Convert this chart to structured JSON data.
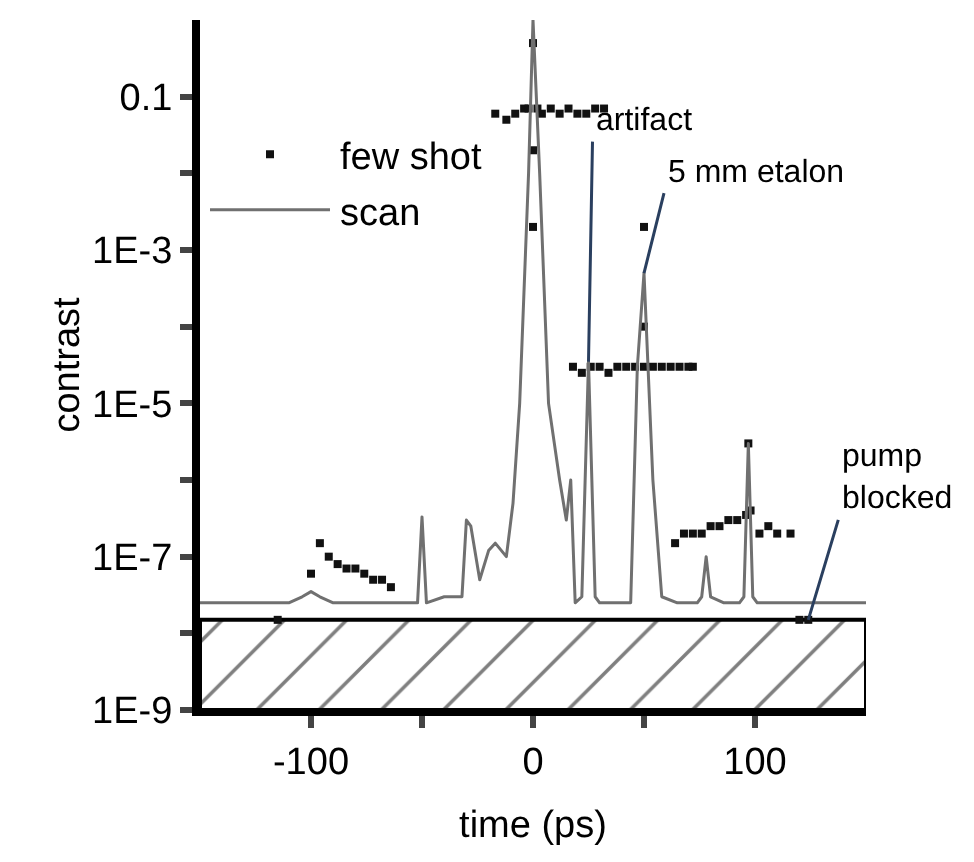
{
  "chart_data": {
    "type": "line",
    "xlabel": "time (ps)",
    "ylabel": "contrast",
    "xlim": [
      -150,
      150
    ],
    "ylim": [
      1e-09,
      1
    ],
    "log": "y",
    "legend": "top left",
    "xticks": [
      {
        "value": -100,
        "label": "-100"
      },
      {
        "value": -50,
        "label": null
      },
      0,
      {
        "value": 50,
        "label": null
      },
      100
    ],
    "yticks": [
      {
        "value": 1e-09,
        "label": "1E-9"
      },
      {
        "value": 1e-08,
        "label": null
      },
      {
        "value": 1e-07,
        "label": "1E-7"
      },
      {
        "value": 1e-06,
        "label": null
      },
      {
        "value": 1e-05,
        "label": "1E-5"
      },
      {
        "value": 0.0001,
        "label": null
      },
      {
        "value": 0.001,
        "label": "1E-3"
      },
      {
        "value": 0.01,
        "label": null
      },
      0.1
    ],
    "series": [
      {
        "name": "few shot",
        "type": "scatter",
        "marker": "square",
        "color": "#111111",
        "x": [
          -115,
          -100,
          -96,
          -92,
          -88,
          -84,
          -80,
          -76,
          -72,
          -68,
          -64,
          -17,
          -12,
          -8,
          -4,
          -2,
          0,
          0,
          0,
          2,
          4,
          8,
          12,
          16,
          20,
          24,
          28,
          32,
          18,
          22,
          26,
          30,
          34,
          38,
          42,
          46,
          50,
          50,
          50,
          54,
          58,
          62,
          66,
          70,
          72,
          64,
          68,
          72,
          76,
          80,
          84,
          88,
          92,
          96,
          97,
          98,
          102,
          106,
          110,
          116,
          120,
          124
        ],
        "values": [
          1.5e-08,
          6e-08,
          1.5e-07,
          1e-07,
          8e-08,
          7e-08,
          7e-08,
          6e-08,
          5e-08,
          5e-08,
          4e-08,
          0.06,
          0.05,
          0.06,
          0.07,
          0.07,
          0.5,
          0.02,
          0.002,
          0.07,
          0.06,
          0.07,
          0.06,
          0.07,
          0.06,
          0.06,
          0.07,
          0.07,
          3e-05,
          2.5e-05,
          3e-05,
          3e-05,
          2.5e-05,
          3e-05,
          3e-05,
          3e-05,
          0.002,
          0.0001,
          3e-05,
          3e-05,
          3e-05,
          3e-05,
          3e-05,
          3e-05,
          3e-05,
          1.5e-07,
          2e-07,
          2e-07,
          2e-07,
          2.5e-07,
          2.5e-07,
          3e-07,
          3e-07,
          3.5e-07,
          3e-06,
          4e-07,
          2e-07,
          2.5e-07,
          2e-07,
          2e-07,
          1.5e-08,
          1.5e-08
        ]
      },
      {
        "name": "scan",
        "color": "#707070",
        "x": [
          -150,
          -130,
          -110,
          -104,
          -100,
          -96,
          -90,
          -80,
          -70,
          -60,
          -52,
          -50,
          -48,
          -40,
          -32,
          -30,
          -28,
          -24,
          -20,
          -17,
          -12,
          -9,
          -6,
          -2,
          0,
          3,
          7,
          12,
          15,
          17,
          19,
          22,
          25,
          28,
          30,
          37,
          44,
          47,
          50,
          54,
          58,
          65,
          74,
          76,
          78,
          80,
          86,
          93,
          95,
          97,
          99,
          101,
          110,
          130,
          150
        ],
        "values": [
          2.5e-08,
          2.5e-08,
          2.5e-08,
          3e-08,
          3.5e-08,
          3e-08,
          2.5e-08,
          2.5e-08,
          2.5e-08,
          2.5e-08,
          2.5e-08,
          3.3e-07,
          2.5e-08,
          3e-08,
          3e-08,
          3e-07,
          2.5e-07,
          5e-08,
          1.2e-07,
          1.5e-07,
          1e-07,
          5e-07,
          1e-05,
          0.01,
          1,
          0.01,
          1e-05,
          1e-06,
          3e-07,
          1e-06,
          2.5e-08,
          3e-08,
          3.5e-05,
          3e-08,
          2.5e-08,
          2.5e-08,
          2.5e-08,
          3e-05,
          0.0005,
          1e-06,
          3e-08,
          2.5e-08,
          2.5e-08,
          3e-08,
          1e-07,
          3e-08,
          2.5e-08,
          2.5e-08,
          3e-08,
          3e-06,
          3e-08,
          2.5e-08,
          2.5e-08,
          2.5e-08,
          2.5e-08
        ]
      }
    ],
    "bands": [
      {
        "axis": "y",
        "from": 1e-09,
        "to": 1.5e-08,
        "color": "#000000"
      }
    ],
    "annotations": [
      {
        "text": "artifact",
        "x": 25,
        "y": 3.5e-05
      },
      {
        "text": "5 mm etalon",
        "x": 50,
        "y": 0.0005
      },
      {
        "text": "pump\nblocked",
        "x": 124,
        "y": 1.5e-08
      }
    ]
  }
}
